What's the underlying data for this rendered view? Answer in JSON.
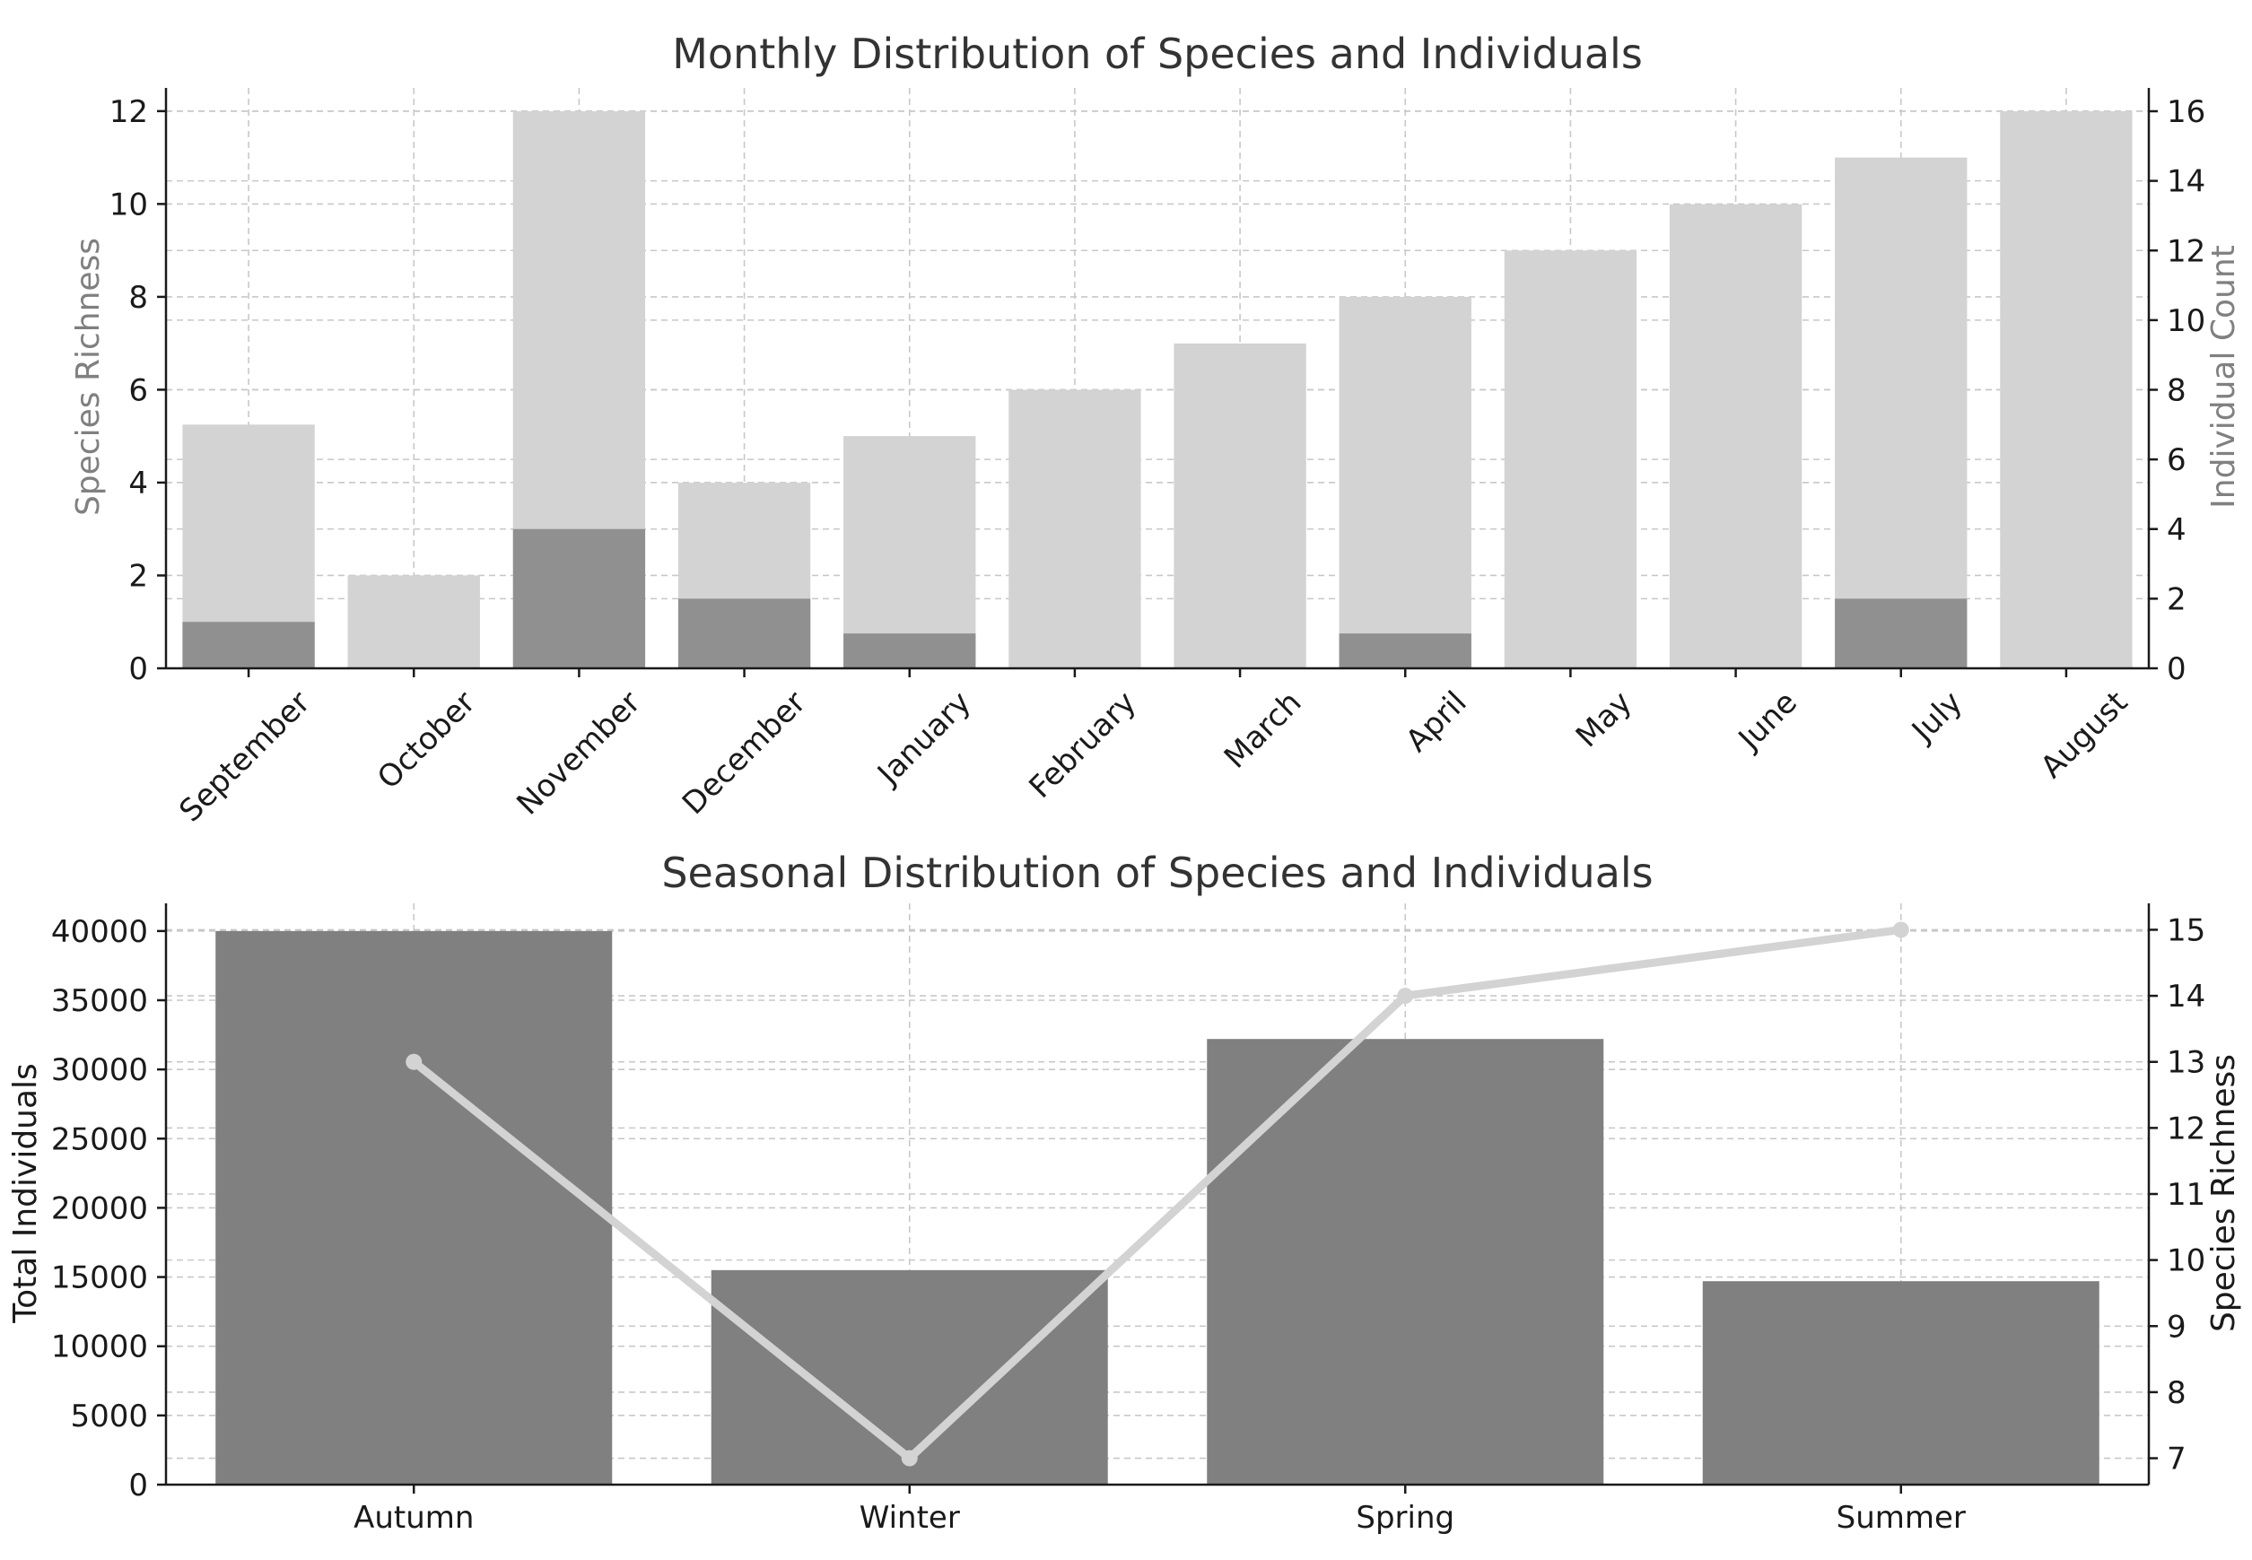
{
  "chart_data": [
    {
      "type": "bar",
      "title": "Monthly Distribution of Species and Individuals",
      "categories": [
        "September",
        "October",
        "November",
        "December",
        "January",
        "February",
        "March",
        "April",
        "May",
        "June",
        "July",
        "August"
      ],
      "ylabel_left": "Species Richness",
      "ylabel_right": "Individual Count",
      "ylim_left": [
        0,
        12.5
      ],
      "ylim_right": [
        0,
        16.67
      ],
      "yticks_left": [
        0,
        2,
        4,
        6,
        8,
        10,
        12
      ],
      "yticks_right": [
        0,
        2,
        4,
        6,
        8,
        10,
        12,
        14,
        16
      ],
      "grid": true,
      "series": [
        {
          "name": "Individual Count",
          "axis": "right",
          "color": "#d3d3d3",
          "values": [
            7,
            2.67,
            16,
            5.33,
            6.67,
            8,
            9.33,
            10.67,
            12,
            13.33,
            14.67,
            16
          ]
        },
        {
          "name": "Species Richness",
          "axis": "left",
          "color": "#7f7f7f",
          "opacity": 0.8,
          "values": [
            1,
            0,
            3,
            1.5,
            0.75,
            0,
            0,
            0.75,
            0,
            0,
            1.5,
            0
          ]
        }
      ]
    },
    {
      "type": "bar",
      "title": "Seasonal Distribution of Species and Individuals",
      "categories": [
        "Autumn",
        "Winter",
        "Spring",
        "Summer"
      ],
      "ylabel_left": "Total Individuals",
      "ylabel_right": "Species Richness",
      "ylim_left": [
        0,
        42000
      ],
      "ylim_right": [
        6.6,
        15.4
      ],
      "yticks_left": [
        0,
        5000,
        10000,
        15000,
        20000,
        25000,
        30000,
        35000,
        40000
      ],
      "yticks_right": [
        7,
        8,
        9,
        10,
        11,
        12,
        13,
        14,
        15
      ],
      "grid": true,
      "series": [
        {
          "name": "Total Individuals",
          "type": "bar",
          "axis": "left",
          "color": "#808080",
          "values": [
            40000,
            15500,
            32200,
            14700
          ]
        },
        {
          "name": "Species Richness",
          "type": "line",
          "axis": "right",
          "color": "#d3d3d3",
          "values": [
            13,
            7,
            14,
            15
          ]
        }
      ]
    }
  ],
  "colors": {
    "label_gray": "#808080",
    "label_dark": "#1a1a1a"
  }
}
